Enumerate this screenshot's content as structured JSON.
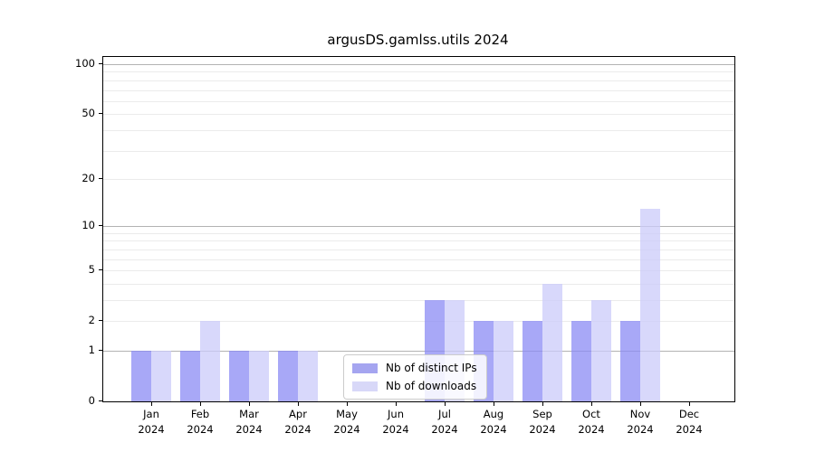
{
  "title": "argusDS.gamlss.utils 2024",
  "legend": {
    "items": [
      {
        "label": "Nb of distinct IPs",
        "color": "#a5a5f0"
      },
      {
        "label": "Nb of downloads",
        "color": "#d8d8f8"
      }
    ]
  },
  "colors": {
    "bar_ips": "rgba(139,139,244,0.75)",
    "bar_downloads": "rgba(203,203,249,0.75)",
    "swatch_ips": "#a5a5f0",
    "swatch_downloads": "#d8d8f8",
    "major_grid": "#b3b3b3",
    "minor_grid": "#ebebeb",
    "axis": "#000000"
  },
  "chart_data": {
    "type": "bar",
    "title": "argusDS.gamlss.utils 2024",
    "categories": [
      "Jan",
      "Feb",
      "Mar",
      "Apr",
      "May",
      "Jun",
      "Jul",
      "Aug",
      "Sep",
      "Oct",
      "Nov",
      "Dec"
    ],
    "year_label": "2024",
    "series": [
      {
        "name": "Nb of distinct IPs",
        "values": [
          1,
          1,
          1,
          1,
          0,
          0,
          3,
          2,
          2,
          2,
          2,
          0
        ]
      },
      {
        "name": "Nb of downloads",
        "values": [
          1,
          2,
          1,
          1,
          0,
          0,
          3,
          2,
          4,
          3,
          13,
          0
        ]
      }
    ],
    "y_scale": "log1p",
    "ylim": [
      0,
      110.6
    ],
    "y_ticks": [
      0,
      1,
      2,
      5,
      10,
      20,
      50,
      100
    ],
    "y_major_gridlines": [
      1,
      10,
      100
    ],
    "y_minor_gridlines": [
      2,
      3,
      4,
      5,
      6,
      7,
      8,
      9,
      20,
      30,
      40,
      50,
      60,
      70,
      80,
      90
    ],
    "xlabel": "",
    "ylabel": "",
    "grid": true,
    "legend_position": "bottom-center"
  }
}
